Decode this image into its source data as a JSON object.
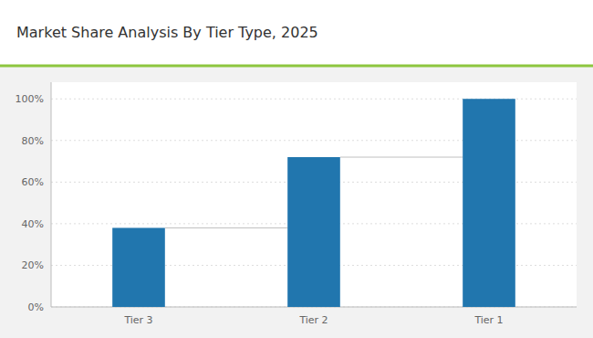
{
  "chart_data": {
    "type": "bar",
    "title": "Market Share Analysis By Tier Type, 2025",
    "categories": [
      "Tier 3",
      "Tier 2",
      "Tier 1"
    ],
    "values": [
      38,
      72,
      100
    ],
    "color": "#2176ae",
    "ylim": [
      0,
      108
    ],
    "yticks": [
      {
        "value": 0,
        "label": "0%"
      },
      {
        "value": 20,
        "label": "20%"
      },
      {
        "value": 40,
        "label": "40%"
      },
      {
        "value": 60,
        "label": "60%"
      },
      {
        "value": 80,
        "label": "80%"
      },
      {
        "value": 100,
        "label": "100%"
      }
    ],
    "grid": true
  }
}
